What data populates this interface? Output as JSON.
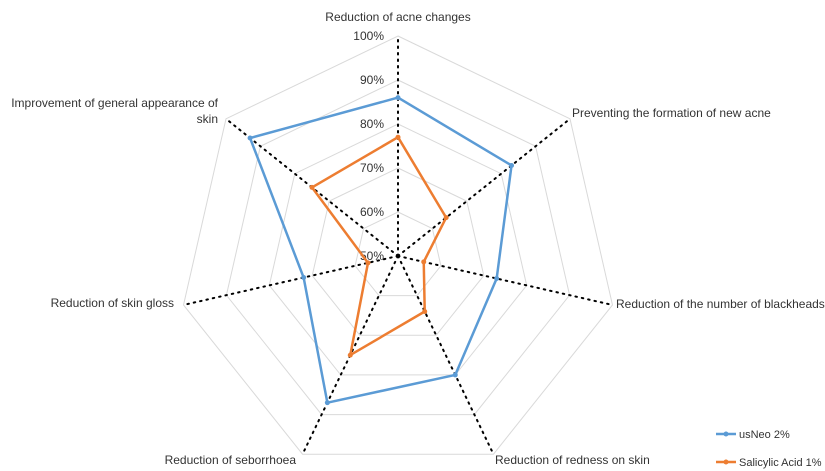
{
  "chart_data": {
    "type": "radar",
    "axes": [
      "Reduction of acne changes",
      "Preventing the formation of new acne",
      "Reduction of the number of blackheads",
      "Reduction of redness on skin",
      "Reduction of seborrhoea",
      "Reduction of skin gloss",
      "Improvement of general appearance of skin"
    ],
    "rlim": [
      50,
      100
    ],
    "ticks": [
      50,
      60,
      70,
      80,
      90,
      100
    ],
    "tick_labels": [
      "50%",
      "60%",
      "70%",
      "80%",
      "90%",
      "100%"
    ],
    "grid": true,
    "legend_position": "bottom-right",
    "series": [
      {
        "name": "usNeo 2%",
        "color": "#5B9BD5",
        "values": [
          86,
          83,
          73,
          80,
          87,
          72,
          93
        ]
      },
      {
        "name": "Salicylic Acid 1%",
        "color": "#ED7D31",
        "values": [
          77,
          64,
          56,
          64,
          75,
          57,
          75
        ]
      }
    ]
  }
}
